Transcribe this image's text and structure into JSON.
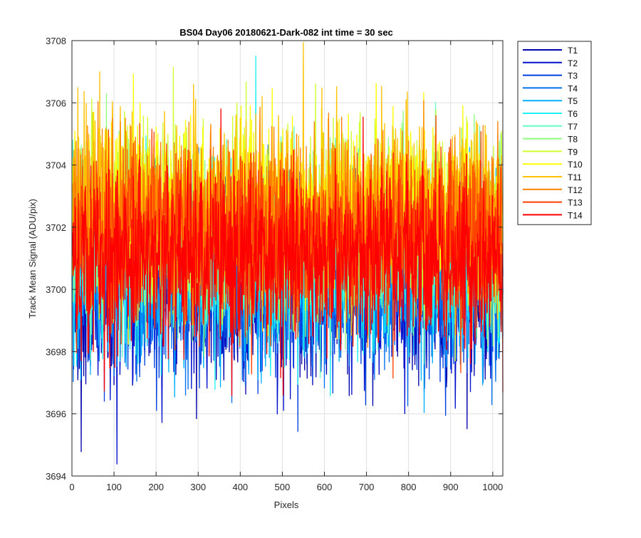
{
  "chart_data": {
    "type": "line",
    "title": "BS04 Day06 20180621-Dark-082 int time = 30 sec",
    "xlabel": "Pixels",
    "ylabel": "Track Mean Signal (ADU/pix)",
    "xlim": [
      0,
      1024
    ],
    "ylim": [
      3694,
      3708
    ],
    "xticks": [
      0,
      100,
      200,
      300,
      400,
      500,
      600,
      700,
      800,
      900,
      1000
    ],
    "yticks": [
      3694,
      3696,
      3698,
      3700,
      3702,
      3704,
      3706,
      3708
    ],
    "grid": true,
    "legend_position": "top-right, outside plot",
    "x_points": 1024,
    "noise_approx_std": 1.3,
    "series": [
      {
        "name": "T1",
        "color": "#0000AA",
        "approx_mean": 3700.1
      },
      {
        "name": "T2",
        "color": "#0010CC",
        "approx_mean": 3700.2
      },
      {
        "name": "T3",
        "color": "#0040E0",
        "approx_mean": 3700.3
      },
      {
        "name": "T4",
        "color": "#0070F0",
        "approx_mean": 3700.4
      },
      {
        "name": "T5",
        "color": "#00B0FF",
        "approx_mean": 3700.5
      },
      {
        "name": "T6",
        "color": "#20F0F0",
        "approx_mean": 3701.0
      },
      {
        "name": "T7",
        "color": "#60FFC0",
        "approx_mean": 3701.5
      },
      {
        "name": "T8",
        "color": "#90FF80",
        "approx_mean": 3702.0
      },
      {
        "name": "T9",
        "color": "#D0FF30",
        "approx_mean": 3702.4
      },
      {
        "name": "T10",
        "color": "#FFFF00",
        "approx_mean": 3702.6
      },
      {
        "name": "T11",
        "color": "#FFC000",
        "approx_mean": 3702.5
      },
      {
        "name": "T12",
        "color": "#FF8000",
        "approx_mean": 3702.2
      },
      {
        "name": "T13",
        "color": "#FF4000",
        "approx_mean": 3701.6
      },
      {
        "name": "T14",
        "color": "#FF0000",
        "approx_mean": 3700.9
      }
    ]
  }
}
